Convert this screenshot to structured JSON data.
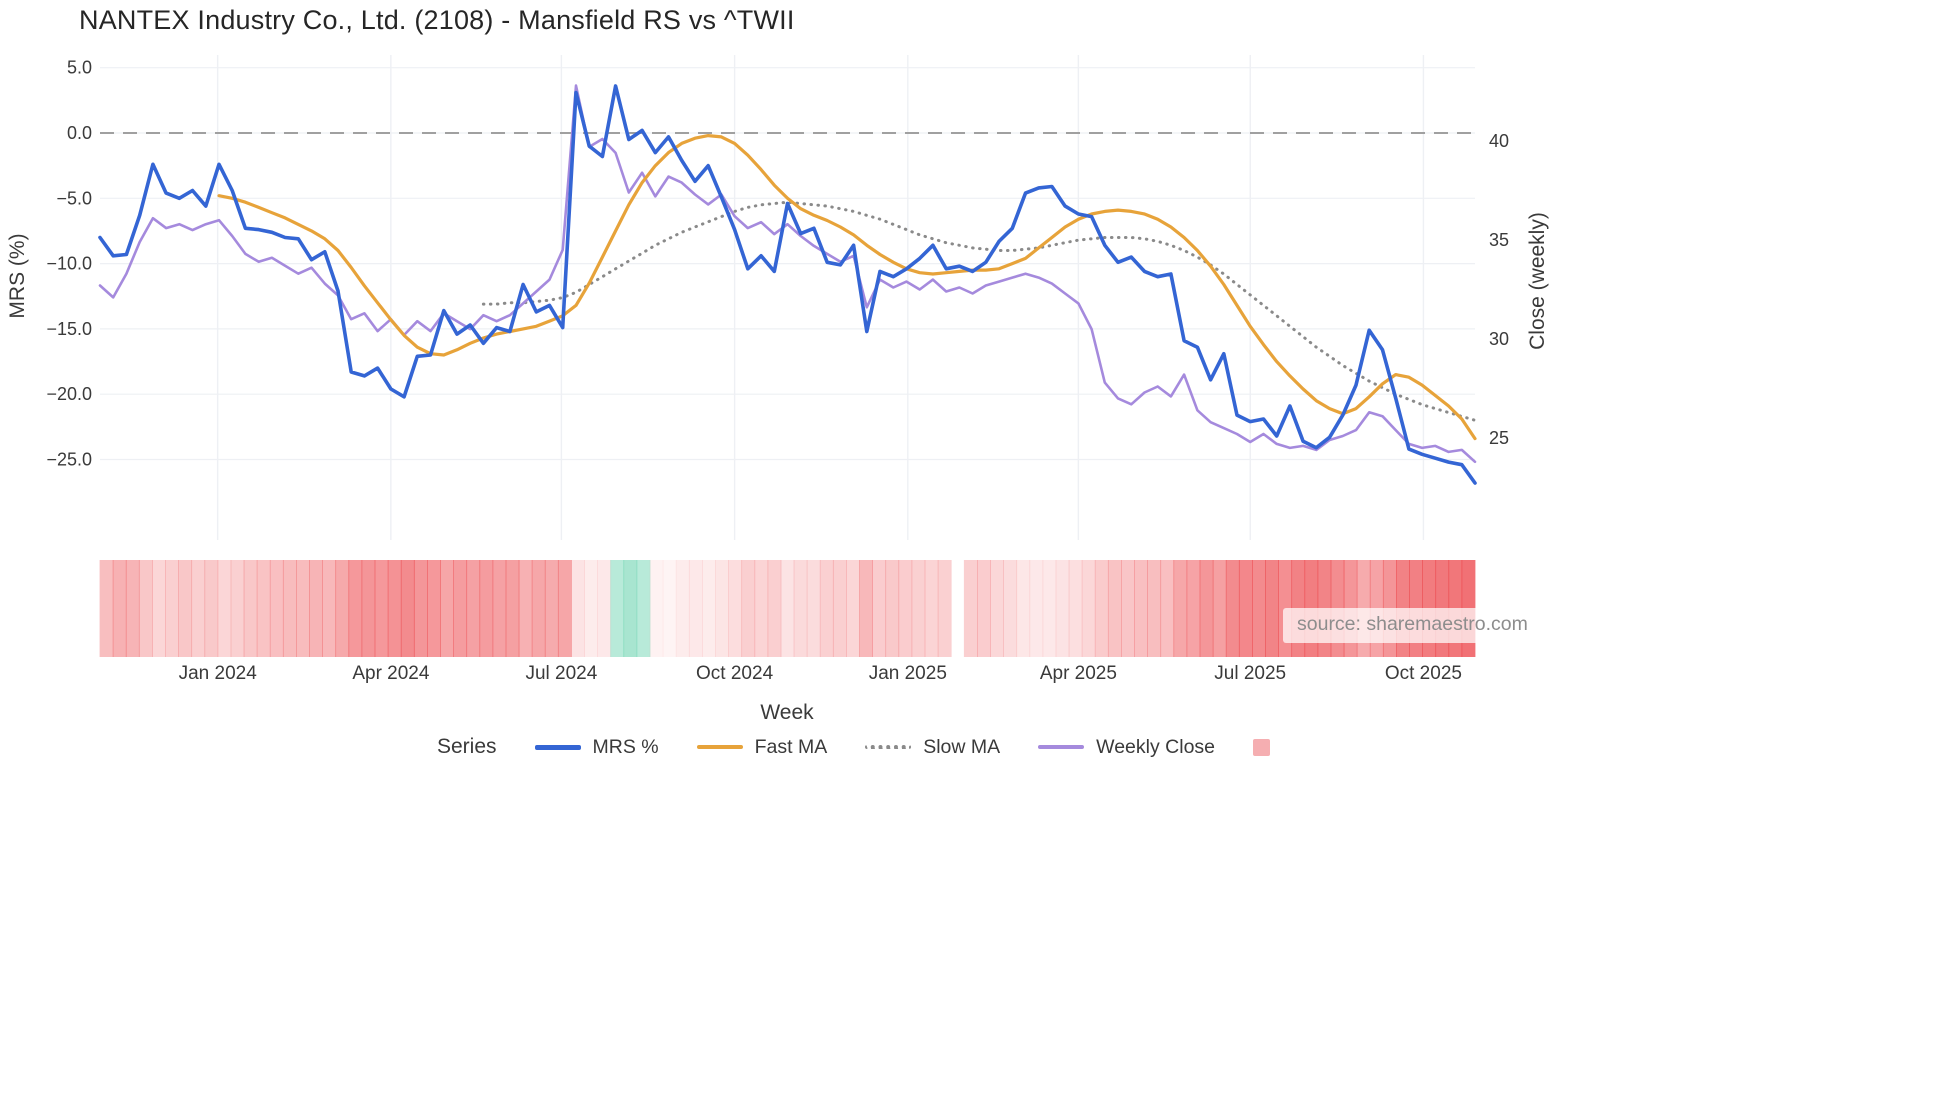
{
  "legend": {
    "title": "Series",
    "items": [
      {
        "key": "mrs",
        "label": "MRS %"
      },
      {
        "key": "fast_ma",
        "label": "Fast MA"
      },
      {
        "key": "slow_ma",
        "label": "Slow MA"
      },
      {
        "key": "weekly_close",
        "label": "Weekly Close"
      },
      {
        "key": "heatmap",
        "label": ""
      }
    ]
  },
  "source": {
    "text": "source: sharemaestro.com"
  },
  "colors": {
    "mrs": "#3465d4",
    "fast": "#e7a33a",
    "slow": "#8a8a8a",
    "close": "#a58add",
    "heat_red": "#ec4449",
    "heat_green": "#61d0aa",
    "heat_swatch": "#f5aeb1",
    "zero_line": "#a0a0a0",
    "grid": "#eef0f4",
    "text": "#3a3a3a"
  },
  "chart_data": {
    "type": "line",
    "title": "NANTEX Industry Co., Ltd. (2108) - Mansfield RS vs ^TWII",
    "n_weeks": 105,
    "x_axis": {
      "label": "Week",
      "ticks": [
        {
          "week": 8.9,
          "label": "Jan 2024"
        },
        {
          "week": 22.0,
          "label": "Apr 2024"
        },
        {
          "week": 34.9,
          "label": "Jul 2024"
        },
        {
          "week": 48.0,
          "label": "Oct 2024"
        },
        {
          "week": 61.1,
          "label": "Jan 2025"
        },
        {
          "week": 74.0,
          "label": "Apr 2025"
        },
        {
          "week": 87.0,
          "label": "Jul 2025"
        },
        {
          "week": 100.1,
          "label": "Oct 2025"
        }
      ]
    },
    "left_axis": {
      "label": "MRS (%)",
      "range": [
        6.0,
        -28.5
      ],
      "zero_line": 0,
      "ticks": [
        {
          "value": 5,
          "label": "5.0"
        },
        {
          "value": 0,
          "label": "0.0"
        },
        {
          "value": -5,
          "label": "−5.0"
        },
        {
          "value": -10,
          "label": "−10.0"
        },
        {
          "value": -15,
          "label": "−15.0"
        },
        {
          "value": -20,
          "label": "−20.0"
        },
        {
          "value": -25,
          "label": "−25.0"
        }
      ]
    },
    "right_axis": {
      "label": "Close (weekly)",
      "range": [
        44.3,
        21.3
      ],
      "ticks": [
        {
          "value": 40,
          "label": "40"
        },
        {
          "value": 35,
          "label": "35"
        },
        {
          "value": 30,
          "label": "30"
        },
        {
          "value": 25,
          "label": "25"
        }
      ]
    },
    "series": [
      {
        "id": "slow_ma",
        "name": "Slow MA",
        "axis": "left",
        "color": "slow",
        "width": 3,
        "dash": "0.5 6.5",
        "values": [
          null,
          null,
          null,
          null,
          null,
          null,
          null,
          null,
          null,
          null,
          null,
          null,
          null,
          null,
          null,
          null,
          null,
          null,
          null,
          null,
          null,
          null,
          null,
          null,
          null,
          null,
          null,
          null,
          null,
          -13.1,
          -13.1,
          -13.0,
          -13.0,
          -12.9,
          -12.8,
          -12.6,
          -12.2,
          -11.6,
          -11.0,
          -10.4,
          -9.8,
          -9.2,
          -8.6,
          -8.1,
          -7.6,
          -7.2,
          -6.8,
          -6.4,
          -6.0,
          -5.7,
          -5.5,
          -5.4,
          -5.3,
          -5.4,
          -5.5,
          -5.6,
          -5.8,
          -6.0,
          -6.3,
          -6.6,
          -7.0,
          -7.4,
          -7.8,
          -8.1,
          -8.4,
          -8.6,
          -8.8,
          -8.9,
          -9.0,
          -9.0,
          -8.9,
          -8.8,
          -8.6,
          -8.4,
          -8.2,
          -8.1,
          -8.0,
          -8.0,
          -8.0,
          -8.1,
          -8.3,
          -8.6,
          -9.0,
          -9.5,
          -10.1,
          -10.8,
          -11.6,
          -12.4,
          -13.2,
          -14.0,
          -14.8,
          -15.6,
          -16.4,
          -17.1,
          -17.8,
          -18.4,
          -19.0,
          -19.5,
          -20.0,
          -20.4,
          -20.8,
          -21.1,
          -21.4,
          -21.7,
          -22.0
        ]
      },
      {
        "id": "weekly_close",
        "name": "Weekly Close",
        "axis": "right",
        "color": "close",
        "width": 2.6,
        "dash": null,
        "values": [
          32.7,
          32.1,
          33.3,
          34.9,
          36.1,
          35.6,
          35.8,
          35.5,
          35.8,
          36.0,
          35.2,
          34.3,
          33.9,
          34.1,
          33.7,
          33.3,
          33.6,
          32.8,
          32.2,
          31.0,
          31.3,
          30.4,
          31.0,
          30.2,
          30.9,
          30.4,
          31.3,
          30.9,
          30.5,
          31.2,
          30.9,
          31.2,
          31.8,
          32.4,
          33.0,
          34.5,
          42.8,
          39.7,
          40.1,
          39.4,
          37.4,
          38.4,
          37.2,
          38.2,
          37.9,
          37.3,
          36.8,
          37.3,
          36.2,
          35.6,
          35.9,
          35.3,
          35.8,
          35.2,
          34.7,
          34.3,
          33.9,
          34.2,
          31.6,
          33.0,
          32.6,
          32.9,
          32.5,
          33.0,
          32.4,
          32.6,
          32.3,
          32.7,
          32.9,
          33.1,
          33.3,
          33.1,
          32.8,
          32.3,
          31.8,
          30.5,
          27.8,
          27.0,
          26.7,
          27.3,
          27.6,
          27.1,
          28.2,
          26.4,
          25.8,
          25.5,
          25.2,
          24.8,
          25.2,
          24.7,
          24.5,
          24.6,
          24.4,
          24.9,
          25.1,
          25.4,
          26.3,
          26.1,
          25.4,
          24.7,
          24.5,
          24.6,
          24.3,
          24.4,
          23.8
        ]
      },
      {
        "id": "fast_ma",
        "name": "Fast MA",
        "axis": "left",
        "color": "fast",
        "width": 3.2,
        "dash": null,
        "values": [
          null,
          null,
          null,
          null,
          null,
          null,
          null,
          null,
          null,
          -4.8,
          -5.0,
          -5.3,
          -5.7,
          -6.1,
          -6.5,
          -7.0,
          -7.5,
          -8.1,
          -9.0,
          -10.3,
          -11.7,
          -13.0,
          -14.3,
          -15.5,
          -16.4,
          -16.9,
          -17.0,
          -16.6,
          -16.1,
          -15.7,
          -15.4,
          -15.2,
          -15.0,
          -14.8,
          -14.4,
          -14.0,
          -13.2,
          -11.5,
          -9.5,
          -7.5,
          -5.5,
          -3.8,
          -2.5,
          -1.5,
          -0.8,
          -0.4,
          -0.2,
          -0.3,
          -0.8,
          -1.7,
          -2.8,
          -4.0,
          -5.0,
          -5.8,
          -6.3,
          -6.7,
          -7.2,
          -7.8,
          -8.6,
          -9.3,
          -9.9,
          -10.4,
          -10.7,
          -10.8,
          -10.7,
          -10.6,
          -10.5,
          -10.5,
          -10.4,
          -10.0,
          -9.6,
          -8.8,
          -8.0,
          -7.2,
          -6.6,
          -6.2,
          -6.0,
          -5.9,
          -6.0,
          -6.2,
          -6.6,
          -7.2,
          -8.0,
          -9.0,
          -10.2,
          -11.6,
          -13.2,
          -14.8,
          -16.2,
          -17.5,
          -18.6,
          -19.6,
          -20.5,
          -21.1,
          -21.5,
          -21.1,
          -20.2,
          -19.2,
          -18.5,
          -18.7,
          -19.3,
          -20.1,
          -20.9,
          -21.9,
          -23.4
        ]
      },
      {
        "id": "mrs",
        "name": "MRS %",
        "axis": "left",
        "color": "mrs",
        "width": 3.6,
        "dash": null,
        "values": [
          -8.0,
          -9.4,
          -9.3,
          -6.3,
          -2.4,
          -4.6,
          -5.0,
          -4.4,
          -5.6,
          -2.4,
          -4.4,
          -7.3,
          -7.4,
          -7.6,
          -8.0,
          -8.1,
          -9.7,
          -9.1,
          -12.1,
          -18.3,
          -18.6,
          -18.0,
          -19.6,
          -20.2,
          -17.1,
          -17.0,
          -13.6,
          -15.4,
          -14.7,
          -16.1,
          -14.9,
          -15.2,
          -11.6,
          -13.7,
          -13.2,
          -14.9,
          3.1,
          -1.0,
          -1.8,
          3.6,
          -0.5,
          0.2,
          -1.5,
          -0.3,
          -2.1,
          -3.7,
          -2.5,
          -4.9,
          -7.4,
          -10.4,
          -9.4,
          -10.6,
          -5.4,
          -7.7,
          -7.3,
          -9.9,
          -10.1,
          -8.6,
          -15.2,
          -10.6,
          -11.0,
          -10.4,
          -9.6,
          -8.6,
          -10.4,
          -10.2,
          -10.6,
          -9.9,
          -8.3,
          -7.3,
          -4.6,
          -4.2,
          -4.1,
          -5.6,
          -6.2,
          -6.4,
          -8.6,
          -9.9,
          -9.5,
          -10.6,
          -11.0,
          -10.8,
          -15.9,
          -16.4,
          -18.9,
          -16.9,
          -21.6,
          -22.1,
          -21.9,
          -23.2,
          -20.9,
          -23.6,
          -24.1,
          -23.3,
          -21.6,
          -19.3,
          -15.1,
          -16.6,
          -20.3,
          -24.2,
          -24.6,
          -24.9,
          -25.2,
          -25.4,
          -26.8
        ]
      }
    ],
    "heatmap": {
      "description": "weekly strip below plot; positive = red intensity, negative = green intensity, null = gap",
      "values": [
        0.35,
        0.42,
        0.4,
        0.3,
        0.22,
        0.26,
        0.3,
        0.26,
        0.29,
        0.22,
        0.25,
        0.3,
        0.32,
        0.34,
        0.36,
        0.36,
        0.4,
        0.38,
        0.46,
        0.55,
        0.57,
        0.55,
        0.58,
        0.62,
        0.56,
        0.55,
        0.48,
        0.53,
        0.5,
        0.53,
        0.5,
        0.51,
        0.42,
        0.47,
        0.45,
        0.48,
        0.15,
        0.1,
        0.12,
        -0.45,
        -0.55,
        -0.45,
        0.07,
        0.06,
        0.1,
        0.12,
        0.1,
        0.14,
        0.18,
        0.26,
        0.23,
        0.26,
        0.15,
        0.2,
        0.19,
        0.25,
        0.26,
        0.22,
        0.38,
        0.27,
        0.29,
        0.27,
        0.25,
        0.23,
        0.25,
        null,
        0.26,
        0.27,
        0.21,
        0.19,
        0.13,
        0.12,
        0.12,
        0.15,
        0.17,
        0.21,
        0.28,
        0.32,
        0.31,
        0.34,
        0.35,
        0.34,
        0.47,
        0.49,
        0.56,
        0.51,
        0.62,
        0.64,
        0.62,
        0.66,
        0.6,
        0.67,
        0.69,
        0.66,
        0.61,
        0.56,
        0.45,
        0.49,
        0.57,
        0.67,
        0.68,
        0.7,
        0.72,
        0.73,
        0.76
      ]
    }
  }
}
